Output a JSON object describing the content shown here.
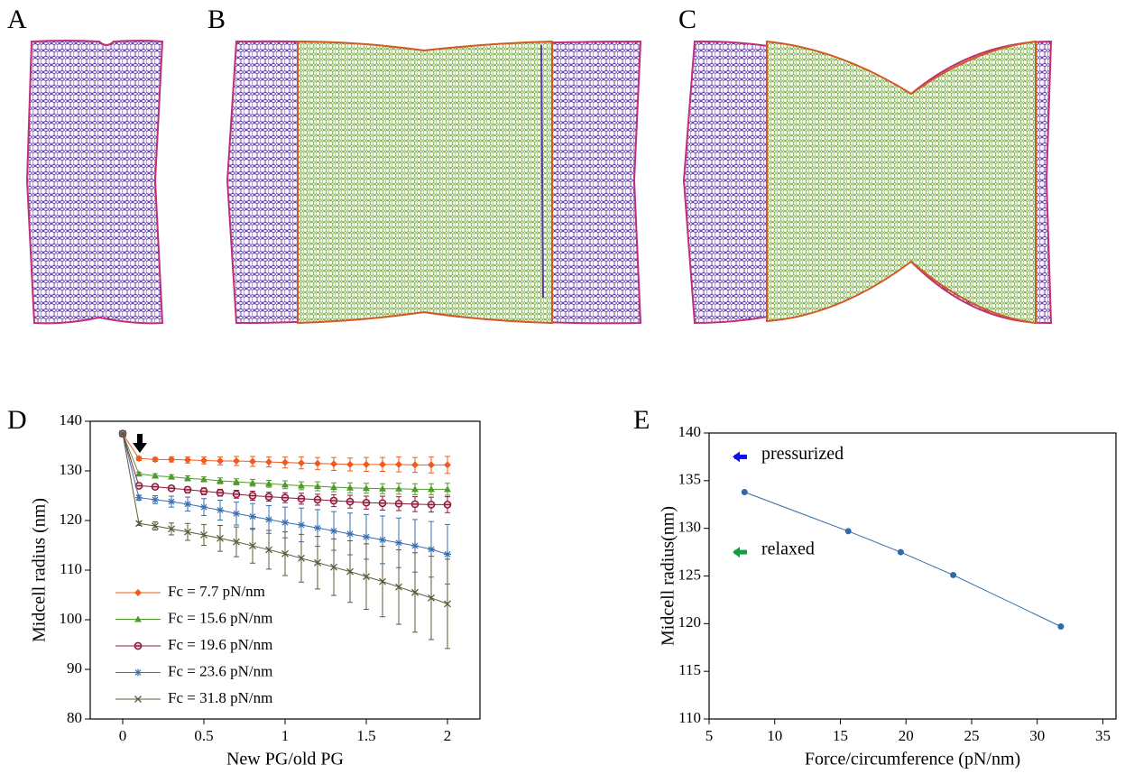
{
  "panels": [
    "A",
    "B",
    "C"
  ],
  "chart_data": [
    {
      "type": "line",
      "label": "D",
      "xlabel": "New PG/old PG",
      "ylabel": "Midcell radius (nm)",
      "x": [
        0,
        0.1,
        0.2,
        0.3,
        0.4,
        0.5,
        0.6,
        0.7,
        0.8,
        0.9,
        1.0,
        1.1,
        1.2,
        1.3,
        1.4,
        1.5,
        1.6,
        1.7,
        1.8,
        1.9,
        2.0
      ],
      "xlim": [
        -0.2,
        2.2
      ],
      "xticks": [
        0,
        0.5,
        1,
        1.5,
        2
      ],
      "ylim": [
        80,
        140
      ],
      "yticks": [
        80,
        90,
        100,
        110,
        120,
        130,
        140
      ],
      "legend": "lower left",
      "series": [
        {
          "name": "Fc = 7.7 pN/nm",
          "color": "#f05a1e",
          "marker": "diamond",
          "values": [
            137.5,
            132.5,
            132.3,
            132.3,
            132.2,
            132.1,
            132.0,
            132.0,
            131.9,
            131.8,
            131.7,
            131.6,
            131.5,
            131.4,
            131.3,
            131.3,
            131.3,
            131.3,
            131.2,
            131.2,
            131.2
          ],
          "errors": [
            0,
            0.4,
            0.4,
            0.5,
            0.6,
            0.7,
            0.8,
            0.9,
            1.0,
            1.0,
            1.1,
            1.2,
            1.2,
            1.3,
            1.3,
            1.4,
            1.4,
            1.5,
            1.5,
            1.6,
            1.7
          ]
        },
        {
          "name": "Fc = 15.6 pN/nm",
          "color": "#4f9a2a",
          "marker": "triangle",
          "values": [
            137.5,
            129.4,
            129.0,
            128.8,
            128.5,
            128.3,
            128.0,
            127.8,
            127.6,
            127.4,
            127.2,
            127.0,
            126.9,
            126.7,
            126.6,
            126.5,
            126.4,
            126.4,
            126.3,
            126.3,
            126.3
          ],
          "errors": [
            0,
            0.3,
            0.4,
            0.4,
            0.5,
            0.5,
            0.6,
            0.6,
            0.7,
            0.7,
            0.8,
            0.8,
            0.9,
            0.9,
            1.0,
            1.0,
            1.0,
            1.1,
            1.1,
            1.1,
            1.2
          ]
        },
        {
          "name": "Fc = 19.6 pN/nm",
          "color": "#8c1c3c",
          "marker": "circle",
          "values": [
            137.5,
            127.0,
            126.8,
            126.5,
            126.2,
            125.9,
            125.6,
            125.3,
            125.0,
            124.8,
            124.6,
            124.4,
            124.2,
            124.0,
            123.8,
            123.6,
            123.5,
            123.4,
            123.3,
            123.2,
            123.2
          ],
          "errors": [
            0,
            0.4,
            0.5,
            0.5,
            0.6,
            0.7,
            0.7,
            0.8,
            0.9,
            0.9,
            1.0,
            1.1,
            1.1,
            1.2,
            1.3,
            1.3,
            1.4,
            1.4,
            1.5,
            1.5,
            1.6
          ]
        },
        {
          "name": "Fc = 23.6 pN/nm",
          "color": "#3a6fb0",
          "marker": "star",
          "values": [
            137.5,
            124.6,
            124.2,
            123.8,
            123.3,
            122.7,
            122.1,
            121.4,
            120.8,
            120.2,
            119.6,
            119.1,
            118.5,
            117.9,
            117.3,
            116.7,
            116.1,
            115.5,
            114.9,
            114.2,
            113.2
          ],
          "errors": [
            0,
            0.5,
            0.8,
            1.1,
            1.4,
            1.7,
            2.0,
            2.3,
            2.6,
            2.8,
            3.1,
            3.4,
            3.7,
            3.9,
            4.2,
            4.5,
            4.8,
            5.0,
            5.3,
            5.6,
            6.0
          ]
        },
        {
          "name": "Fc = 31.8 pN/nm",
          "color": "#5e5a3a",
          "marker": "cross",
          "values": [
            137.5,
            119.4,
            118.9,
            118.3,
            117.7,
            117.1,
            116.4,
            115.7,
            114.9,
            114.1,
            113.3,
            112.4,
            111.5,
            110.6,
            109.7,
            108.7,
            107.7,
            106.6,
            105.5,
            104.4,
            103.2
          ],
          "errors": [
            0,
            0.4,
            0.8,
            1.2,
            1.7,
            2.1,
            2.6,
            3.0,
            3.5,
            3.9,
            4.4,
            4.8,
            5.3,
            5.7,
            6.2,
            6.6,
            7.1,
            7.5,
            8.0,
            8.4,
            9.0
          ]
        }
      ]
    },
    {
      "type": "line",
      "label": "E",
      "xlabel": "Force/circumference (pN/nm)",
      "ylabel": "Midcell radius(nm)",
      "x": [
        7.7,
        15.6,
        19.6,
        23.6,
        31.8
      ],
      "xlim": [
        5,
        36
      ],
      "xticks": [
        5,
        10,
        15,
        20,
        25,
        30,
        35
      ],
      "ylim": [
        110,
        140
      ],
      "yticks": [
        110,
        115,
        120,
        125,
        130,
        135,
        140
      ],
      "series": [
        {
          "color": "#2f6aa8",
          "marker": "dot",
          "values": [
            133.8,
            129.7,
            127.5,
            125.1,
            119.7
          ]
        }
      ],
      "annotations": [
        {
          "text": "pressurized",
          "y": 137.5,
          "color": "#1010e0"
        },
        {
          "text": "relaxed",
          "y": 127.5,
          "color": "#10a040"
        }
      ]
    }
  ]
}
